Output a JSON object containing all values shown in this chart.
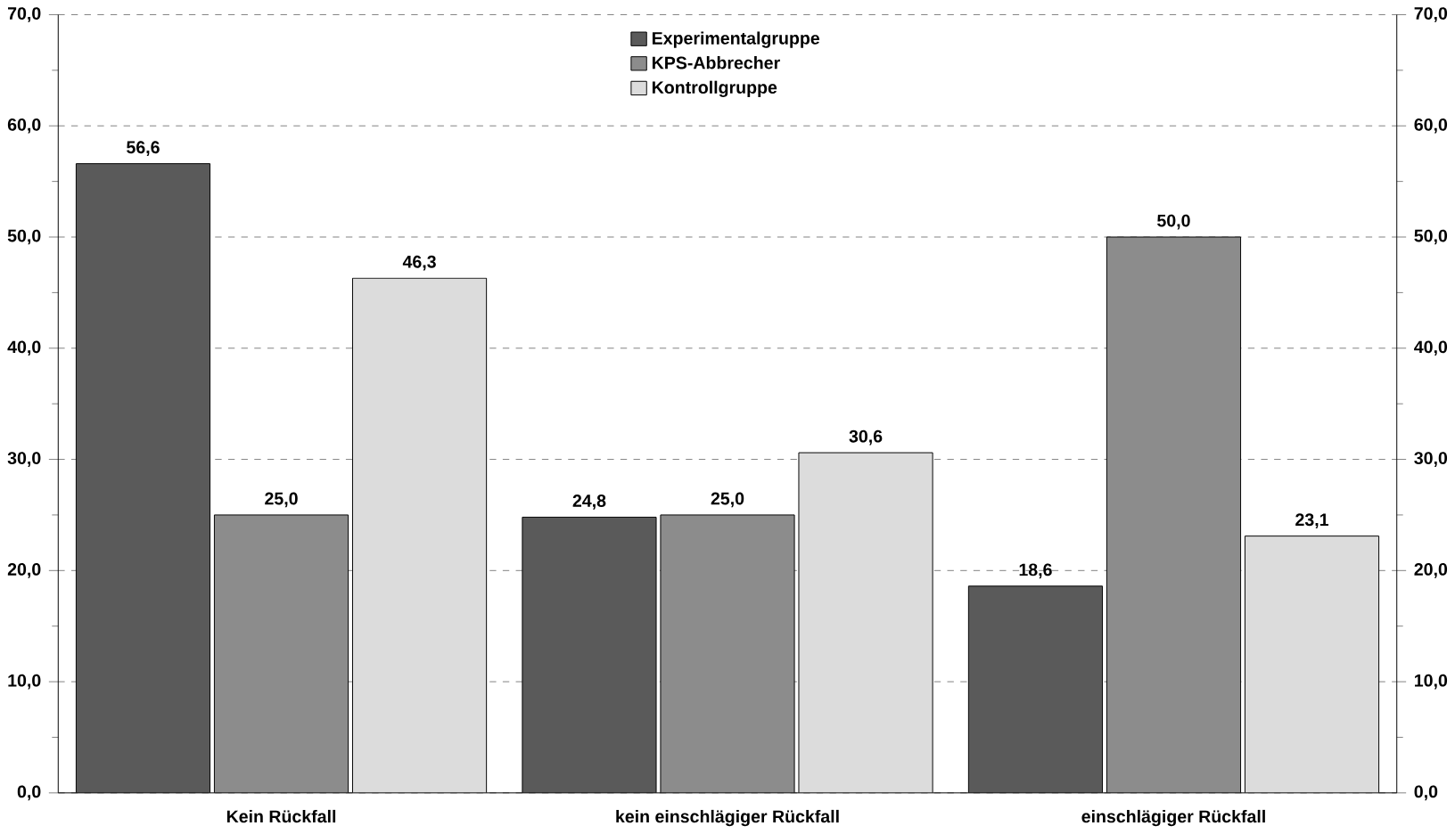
{
  "chart_data": {
    "type": "bar",
    "categories": [
      "Kein Rückfall",
      "kein einschlägiger Rückfall",
      "einschlägiger Rückfall"
    ],
    "series": [
      {
        "name": "Experimentalgruppe",
        "color": "#5a5a5a",
        "values": [
          56.6,
          24.8,
          18.6
        ],
        "value_labels": [
          "56,6",
          "24,8",
          "18,6"
        ]
      },
      {
        "name": "KPS-Abbrecher",
        "color": "#8c8c8c",
        "values": [
          25.0,
          25.0,
          50.0
        ],
        "value_labels": [
          "25,0",
          "25,0",
          "50,0"
        ]
      },
      {
        "name": "Kontrollgruppe",
        "color": "#dcdcdc",
        "values": [
          46.3,
          30.6,
          23.1
        ],
        "value_labels": [
          "46,3",
          "30,6",
          "23,1"
        ]
      }
    ],
    "ylim": [
      0,
      70
    ],
    "yticks": [
      {
        "value": 0,
        "label": "0,0"
      },
      {
        "value": 10,
        "label": "10,0"
      },
      {
        "value": 20,
        "label": "20,0"
      },
      {
        "value": 30,
        "label": "30,0"
      },
      {
        "value": 40,
        "label": "40,0"
      },
      {
        "value": 50,
        "label": "50,0"
      },
      {
        "value": 60,
        "label": "60,0"
      },
      {
        "value": 70,
        "label": "70,0"
      }
    ],
    "y2lim": [
      0,
      70
    ],
    "y2ticks": [
      {
        "value": 0,
        "label": "0,0"
      },
      {
        "value": 10,
        "label": "10,0"
      },
      {
        "value": 20,
        "label": "20,0"
      },
      {
        "value": 30,
        "label": "30,0"
      },
      {
        "value": 40,
        "label": "40,0"
      },
      {
        "value": 50,
        "label": "50,0"
      },
      {
        "value": 60,
        "label": "60,0"
      },
      {
        "value": 70,
        "label": "70,0"
      }
    ],
    "grid": "y",
    "legend": "top"
  }
}
